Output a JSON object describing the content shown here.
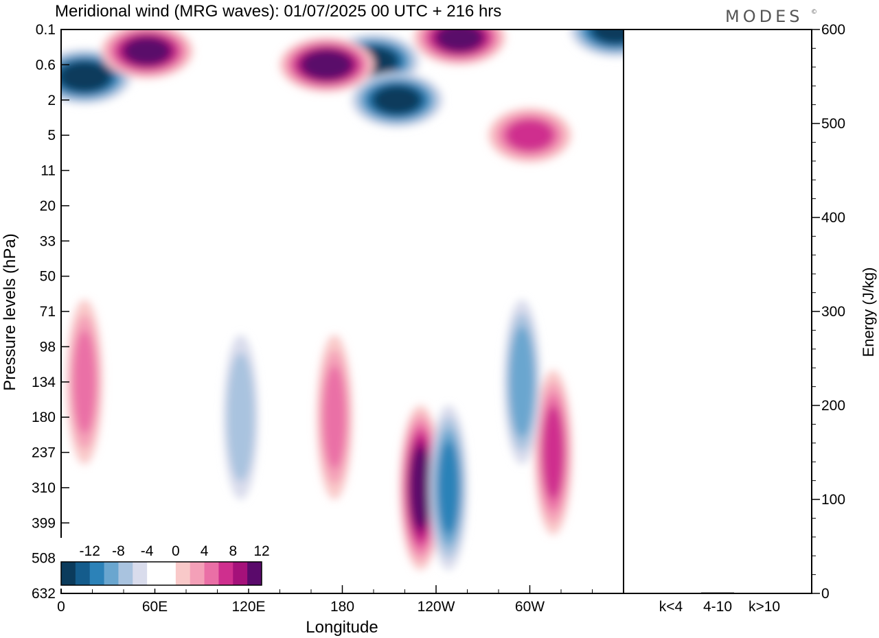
{
  "chart_data": [
    {
      "type": "heatmap",
      "title": "Meridional wind (MRG waves):  01/07/2025  00 UTC  + 216 hrs",
      "xlabel": "Longitude",
      "ylabel": "Pressure levels (hPa)",
      "x_ticks": [
        "0",
        "60E",
        "120E",
        "180",
        "120W",
        "60W"
      ],
      "x_range": [
        0,
        360
      ],
      "y_ticks": [
        "0.1",
        "0.6",
        "2",
        "5",
        "11",
        "20",
        "33",
        "50",
        "71",
        "98",
        "134",
        "180",
        "237",
        "310",
        "399",
        "508",
        "632"
      ],
      "colorbar": {
        "labels": [
          "-12",
          "-8",
          "-4",
          "0",
          "4",
          "8",
          "12"
        ],
        "colors": [
          "#0b3b5c",
          "#145c8c",
          "#2c82b8",
          "#6aa6cf",
          "#a9c3df",
          "#d9dcec",
          "#ffffff",
          "#ffffff",
          "#f9c9c9",
          "#f4a0b8",
          "#ea6fa6",
          "#cf2f8e",
          "#a5117a",
          "#5a0a6b"
        ]
      },
      "features": [
        {
          "lon": 15,
          "level": 0.9,
          "value": -13
        },
        {
          "lon": 200,
          "level": 0.5,
          "value": -12
        },
        {
          "lon": 215,
          "level": 2,
          "value": -12
        },
        {
          "lon": 355,
          "level": 0.1,
          "value": -12
        },
        {
          "lon": 55,
          "level": 0.3,
          "value": 12
        },
        {
          "lon": 170,
          "level": 0.6,
          "value": 13
        },
        {
          "lon": 255,
          "level": 0.15,
          "value": 12
        },
        {
          "lon": 300,
          "level": 5,
          "value": 8
        },
        {
          "lon": 230,
          "level": 310,
          "value": 12
        },
        {
          "lon": 248,
          "level": 310,
          "value": -8
        },
        {
          "lon": 315,
          "level": 237,
          "value": 8
        },
        {
          "lon": 15,
          "level": 134,
          "value": 6
        },
        {
          "lon": 295,
          "level": 134,
          "value": -7
        },
        {
          "lon": 175,
          "level": 180,
          "value": 6
        },
        {
          "lon": 115,
          "level": 180,
          "value": -5
        }
      ]
    },
    {
      "type": "bar",
      "categories": [
        "k<4",
        "4-10",
        "k>10"
      ],
      "values": [
        0.3,
        1.0,
        0.3
      ],
      "ylabel": "Energy (J/kg)",
      "ylim": [
        0,
        600
      ],
      "y_ticks": [
        "0",
        "100",
        "200",
        "300",
        "400",
        "500",
        "600"
      ],
      "bar_color": "#000000"
    }
  ],
  "branding": {
    "logo_text": "MODES",
    "mark": "©"
  }
}
